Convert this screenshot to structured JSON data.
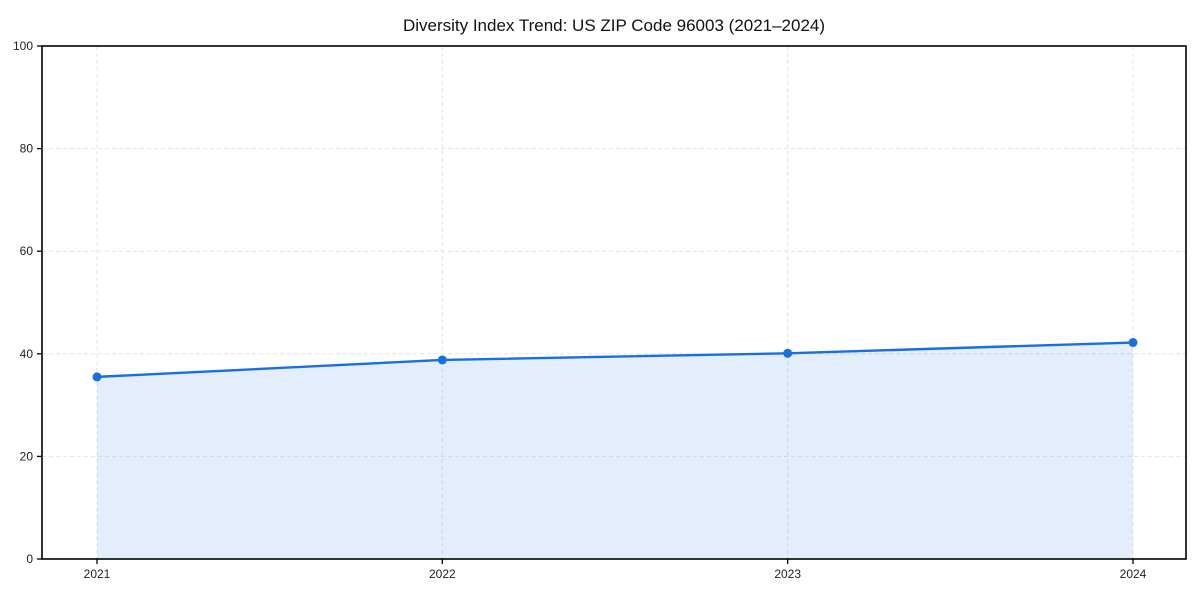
{
  "chart_data": {
    "type": "line",
    "title": "Diversity Index Trend: US ZIP Code 96003 (2021–2024)",
    "x": [
      "2021",
      "2022",
      "2023",
      "2024"
    ],
    "series": [
      {
        "name": "Diversity Index",
        "values": [
          35.5,
          38.8,
          40.1,
          42.2
        ]
      }
    ],
    "xlabel": "",
    "ylabel": "",
    "ylim": [
      0,
      100
    ],
    "yticks": [
      0,
      20,
      40,
      60,
      80,
      100
    ],
    "grid": "dashed-both-axes",
    "legend_position": "none",
    "marker": "circle",
    "area_fill": true
  },
  "colors": {
    "line": "#1a6fe0",
    "marker": "#1a6fe0",
    "area_fill": "rgba(26,111,224,0.12)",
    "grid": "#e4e4e4",
    "axis_frame": "#000000",
    "tick_text": "#222222",
    "title_text": "#111111",
    "background": "#ffffff"
  }
}
